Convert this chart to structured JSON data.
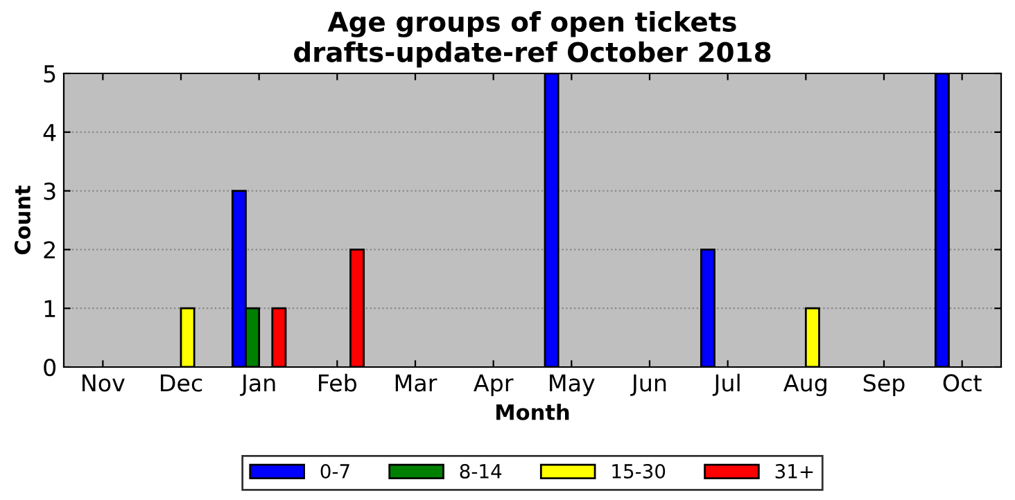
{
  "chart_data": {
    "type": "bar",
    "title": "Age groups of open tickets\ndrafts-update-ref October 2018",
    "xlabel": "Month",
    "ylabel": "Count",
    "categories": [
      "Nov",
      "Dec",
      "Jan",
      "Feb",
      "Mar",
      "Apr",
      "May",
      "Jun",
      "Jul",
      "Aug",
      "Sep",
      "Oct"
    ],
    "series": [
      {
        "name": "0-7",
        "color": "#0000ff",
        "values": [
          0,
          0,
          3,
          0,
          0,
          0,
          5,
          0,
          2,
          0,
          0,
          5
        ]
      },
      {
        "name": "8-14",
        "color": "#008000",
        "values": [
          0,
          0,
          1,
          0,
          0,
          0,
          0,
          0,
          0,
          0,
          0,
          0
        ]
      },
      {
        "name": "15-30",
        "color": "#ffff00",
        "values": [
          0,
          1,
          0,
          0,
          0,
          0,
          0,
          0,
          0,
          1,
          0,
          0
        ]
      },
      {
        "name": "31+",
        "color": "#ff0000",
        "values": [
          0,
          0,
          1,
          2,
          0,
          0,
          0,
          0,
          0,
          0,
          0,
          0
        ]
      }
    ],
    "ylim": [
      0,
      5
    ],
    "yticks": [
      0,
      1,
      2,
      3,
      4,
      5
    ],
    "grid": "y",
    "legend": "bottom"
  }
}
